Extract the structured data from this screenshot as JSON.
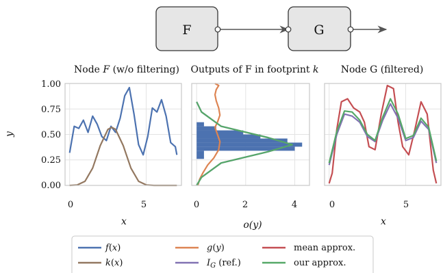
{
  "diagram": {
    "node_f_label": "F",
    "node_g_label": "G"
  },
  "chart_data": [
    {
      "type": "line",
      "title": "Node F (w/o filtering)",
      "xlabel": "x",
      "ylabel": "y",
      "xlim": [
        -0.3,
        7.3
      ],
      "ylim": [
        0.0,
        1.0
      ],
      "xticks": [
        0,
        5
      ],
      "yticks": [
        0.0,
        0.25,
        0.5,
        0.75,
        1.0
      ],
      "ytick_labels": [
        "0.00",
        "0.25",
        "0.50",
        "0.75",
        "1.00"
      ],
      "grid": true,
      "series": [
        {
          "name": "f(x)",
          "color": "#4c72b0",
          "x": [
            0.0,
            0.3,
            0.6,
            0.9,
            1.2,
            1.5,
            1.8,
            2.1,
            2.4,
            2.7,
            3.0,
            3.3,
            3.6,
            3.9,
            4.2,
            4.5,
            4.8,
            5.1,
            5.4,
            5.7,
            6.0,
            6.3,
            6.6,
            6.9,
            7.0
          ],
          "y": [
            0.32,
            0.58,
            0.56,
            0.64,
            0.52,
            0.68,
            0.6,
            0.48,
            0.44,
            0.58,
            0.52,
            0.66,
            0.88,
            0.96,
            0.7,
            0.4,
            0.3,
            0.48,
            0.76,
            0.72,
            0.84,
            0.68,
            0.42,
            0.38,
            0.3
          ]
        },
        {
          "name": "k(x)",
          "color": "#937860",
          "x": [
            0.0,
            0.5,
            1.0,
            1.5,
            2.0,
            2.5,
            2.75,
            3.0,
            3.5,
            4.0,
            4.5,
            5.0,
            5.5,
            6.0,
            7.0
          ],
          "y": [
            0.0,
            0.005,
            0.04,
            0.17,
            0.39,
            0.55,
            0.57,
            0.55,
            0.39,
            0.17,
            0.04,
            0.005,
            0.0,
            0.0,
            0.0
          ]
        }
      ]
    },
    {
      "type": "bar",
      "title": "Outputs of F in footprint k",
      "xlabel": "o(y)",
      "xlim": [
        -0.2,
        4.6
      ],
      "ylim": [
        0.0,
        1.0
      ],
      "xticks": [
        0,
        2,
        4
      ],
      "grid": true,
      "histogram": {
        "color": "#4c72b0",
        "bins": [
          [
            0.26,
            0.34,
            0.3
          ],
          [
            0.34,
            0.38,
            4.0
          ],
          [
            0.38,
            0.42,
            4.3
          ],
          [
            0.42,
            0.46,
            3.7
          ],
          [
            0.46,
            0.5,
            2.6
          ],
          [
            0.5,
            0.54,
            1.9
          ],
          [
            0.54,
            0.58,
            0.8
          ],
          [
            0.58,
            0.62,
            0.3
          ]
        ]
      },
      "series": [
        {
          "name": "g(y)",
          "color": "#dd8452",
          "x": [
            0.05,
            0.12,
            0.25,
            0.45,
            0.7,
            0.9,
            0.95,
            0.85,
            0.75,
            0.85,
            0.95,
            0.9,
            0.8,
            0.75,
            0.8,
            0.9,
            0.75
          ],
          "y": [
            0.0,
            0.06,
            0.12,
            0.2,
            0.27,
            0.35,
            0.43,
            0.5,
            0.57,
            0.62,
            0.69,
            0.76,
            0.83,
            0.89,
            0.94,
            0.98,
            1.0
          ]
        },
        {
          "name": "I_G (ref.)",
          "color": "#8172b2",
          "x": [
            0.0,
            0.2,
            1.0,
            2.9,
            3.9,
            2.9,
            1.0,
            0.2,
            0.0
          ],
          "y": [
            0.0,
            0.08,
            0.22,
            0.33,
            0.4,
            0.47,
            0.58,
            0.72,
            0.82
          ]
        },
        {
          "name": "our approx.",
          "color": "#55a868",
          "x": [
            0.0,
            0.2,
            1.0,
            2.9,
            3.9,
            2.9,
            1.0,
            0.2,
            0.0
          ],
          "y": [
            0.0,
            0.08,
            0.22,
            0.33,
            0.4,
            0.47,
            0.58,
            0.72,
            0.82
          ]
        }
      ]
    },
    {
      "type": "line",
      "title": "Node G (filtered)",
      "xlabel": "x",
      "xlim": [
        -0.3,
        7.3
      ],
      "ylim": [
        0.0,
        1.0
      ],
      "xticks": [
        0,
        5
      ],
      "grid": true,
      "series": [
        {
          "name": "mean approx.",
          "color": "#c44e52",
          "x": [
            0.0,
            0.2,
            0.5,
            0.8,
            1.2,
            1.6,
            2.0,
            2.3,
            2.6,
            3.0,
            3.4,
            3.8,
            4.2,
            4.5,
            4.8,
            5.2,
            5.6,
            6.0,
            6.4,
            6.8,
            7.0
          ],
          "y": [
            0.02,
            0.12,
            0.55,
            0.82,
            0.85,
            0.76,
            0.72,
            0.62,
            0.38,
            0.35,
            0.7,
            0.98,
            0.95,
            0.62,
            0.38,
            0.3,
            0.55,
            0.82,
            0.7,
            0.15,
            0.02
          ]
        },
        {
          "name": "I_G (ref.)",
          "color": "#8172b2",
          "x": [
            0.0,
            0.5,
            1.0,
            1.5,
            2.0,
            2.5,
            3.0,
            3.5,
            4.0,
            4.5,
            5.0,
            5.5,
            6.0,
            6.5,
            7.0
          ],
          "y": [
            0.2,
            0.5,
            0.7,
            0.68,
            0.62,
            0.48,
            0.43,
            0.64,
            0.8,
            0.66,
            0.44,
            0.47,
            0.63,
            0.55,
            0.22
          ]
        },
        {
          "name": "our approx.",
          "color": "#55a868",
          "x": [
            0.0,
            0.5,
            1.0,
            1.5,
            2.0,
            2.5,
            3.0,
            3.5,
            4.0,
            4.5,
            5.0,
            5.5,
            6.0,
            6.5,
            7.0
          ],
          "y": [
            0.22,
            0.53,
            0.73,
            0.72,
            0.64,
            0.5,
            0.44,
            0.67,
            0.85,
            0.7,
            0.46,
            0.49,
            0.66,
            0.57,
            0.24
          ]
        }
      ]
    }
  ],
  "legend": {
    "items": [
      {
        "label": "f(x)",
        "color": "#4c72b0"
      },
      {
        "label": "g(y)",
        "color": "#dd8452"
      },
      {
        "label": "mean approx.",
        "color": "#c44e52"
      },
      {
        "label": "k(x)",
        "color": "#937860"
      },
      {
        "label": "I_G (ref.)",
        "color": "#8172b2"
      },
      {
        "label": "our approx.",
        "color": "#55a868"
      }
    ]
  }
}
